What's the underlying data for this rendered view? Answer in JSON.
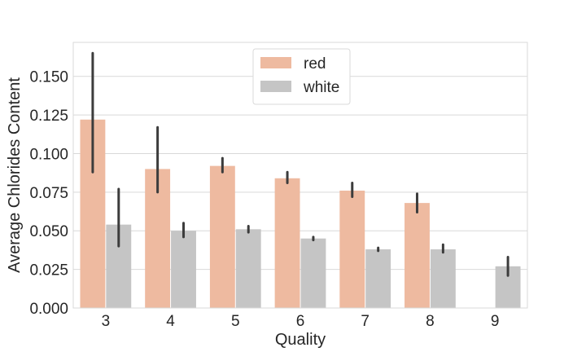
{
  "chart_data": {
    "type": "bar",
    "title": "",
    "xlabel": "Quality",
    "ylabel": "Average Chlorides Content",
    "categories": [
      "3",
      "4",
      "5",
      "6",
      "7",
      "8",
      "9"
    ],
    "ylim": [
      0,
      0.172
    ],
    "yticks": [
      "0.000",
      "0.025",
      "0.050",
      "0.075",
      "0.100",
      "0.125",
      "0.150"
    ],
    "grid": true,
    "legend_position": "top-center",
    "series": [
      {
        "name": "red",
        "color": "#eebaa0",
        "values": [
          0.122,
          0.09,
          0.092,
          0.084,
          0.076,
          0.068,
          null
        ],
        "err_low": [
          0.088,
          0.075,
          0.088,
          0.081,
          0.072,
          0.062,
          null
        ],
        "err_high": [
          0.165,
          0.117,
          0.097,
          0.088,
          0.081,
          0.074,
          null
        ]
      },
      {
        "name": "white",
        "color": "#c5c5c5",
        "values": [
          0.054,
          0.05,
          0.051,
          0.045,
          0.038,
          0.038,
          0.027
        ],
        "err_low": [
          0.04,
          0.046,
          0.049,
          0.044,
          0.037,
          0.036,
          0.021
        ],
        "err_high": [
          0.077,
          0.055,
          0.053,
          0.046,
          0.039,
          0.041,
          0.033
        ]
      }
    ],
    "error_bar_color": "#3c3c3c",
    "grid_color": "#d9d9d9",
    "spine_color": "#d9d9d9"
  }
}
